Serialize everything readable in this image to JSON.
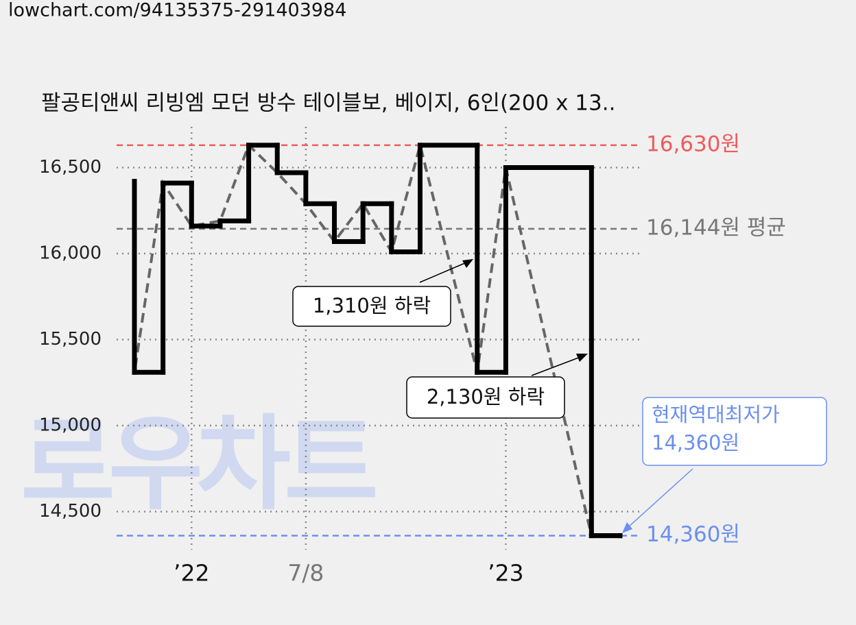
{
  "url": "lowchart.com/94135375-291403984",
  "watermark": "로우차트",
  "chart_data": {
    "type": "step",
    "title": "팔공티앤씨 리빙엠 모던 방수 테이블보, 베이지, 6인(200 x 13..",
    "x": [
      0,
      0,
      1,
      2,
      3,
      4,
      5,
      6,
      7,
      8,
      9,
      10,
      12,
      13,
      16,
      17
    ],
    "values": [
      16420,
      15310,
      16410,
      16160,
      16190,
      16630,
      16470,
      16290,
      16070,
      16290,
      16010,
      16630,
      15310,
      16500,
      14360,
      14360
    ],
    "color": "#000000",
    "trend_color": "#666666",
    "xlim": [
      0,
      17
    ],
    "xticks": [
      {
        "value": 2,
        "label": "’22"
      },
      {
        "value": 6,
        "label": "7/8"
      },
      {
        "value": 13,
        "label": "’23"
      }
    ],
    "ylim": [
      14285,
      16800
    ],
    "yticks": [
      {
        "value": 14500,
        "label": "14,500"
      },
      {
        "value": 15000,
        "label": "15,000"
      },
      {
        "value": 15500,
        "label": "15,500"
      },
      {
        "value": 16000,
        "label": "16,000"
      },
      {
        "value": 16500,
        "label": "16,500"
      }
    ],
    "grid": true,
    "reference_lines": [
      {
        "value": 16630,
        "label": "16,630원",
        "color": "#f05a5a"
      },
      {
        "value": 16144,
        "label": "16,144원 평균",
        "color": "#777777"
      },
      {
        "value": 14360,
        "label": "14,360원",
        "color": "#6b8ff0"
      }
    ],
    "annotations": [
      "1,310원 하락",
      "2,130원 하락"
    ],
    "lowest_note": [
      "현재역대최저가",
      "14,360원"
    ]
  }
}
